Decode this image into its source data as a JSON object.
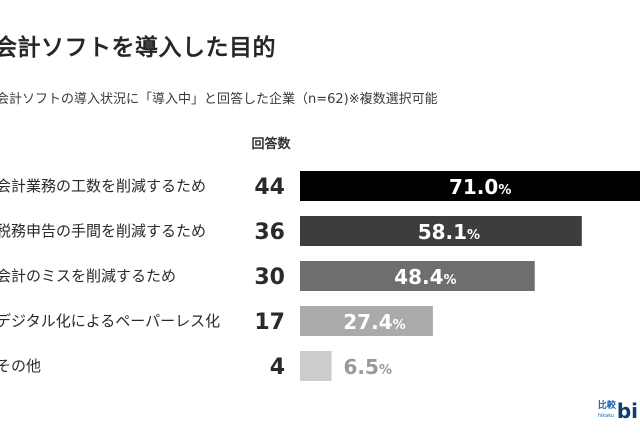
{
  "title": "会計ソフトを導入した目的",
  "subtitle": "会計ソフトの導入状況に「導入中」と回答した企業（n=62)※複数選択可能",
  "chart_data": {
    "type": "bar",
    "orientation": "horizontal",
    "column_header": "回答数",
    "categories": [
      "会計業務の工数を削減するため",
      "税務申告の手間を削減するため",
      "会計のミスを削減するため",
      "デジタル化によるペーパーレス化",
      "その他"
    ],
    "counts": [
      44,
      36,
      30,
      17,
      4
    ],
    "values": [
      71.0,
      58.1,
      48.4,
      27.4,
      6.5
    ],
    "value_labels": [
      "71.0",
      "58.1",
      "48.4",
      "27.4",
      "6.5"
    ],
    "unit": "%",
    "bar_colors": [
      "#000000",
      "#3d3d3d",
      "#6e6e6e",
      "#aaaaaa",
      "#cccccc"
    ],
    "label_colors": [
      "#ffffff",
      "#ffffff",
      "#ffffff",
      "#ffffff",
      "#9a9a9a"
    ]
  },
  "logo": {
    "top": "比較",
    "sub": "hikaku",
    "main": "bi"
  }
}
